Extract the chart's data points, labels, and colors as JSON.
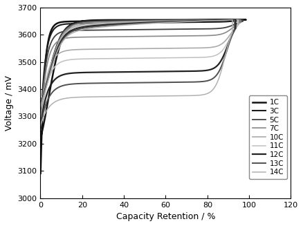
{
  "title": "",
  "xlabel": "Capacity Retention / %",
  "ylabel": "Voltage / mV",
  "xlim": [
    0,
    120
  ],
  "ylim": [
    3000,
    3700
  ],
  "xticks": [
    0,
    20,
    40,
    60,
    80,
    100,
    120
  ],
  "yticks": [
    3000,
    3100,
    3200,
    3300,
    3400,
    3500,
    3600,
    3700
  ],
  "curve_params": [
    {
      "label": "1C",
      "color": "#111111",
      "lw": 1.8,
      "v_init": 3075,
      "v_plat_c": 3648,
      "v_plat_d": 3648,
      "end_cap": 98.5,
      "rise_rate": 55
    },
    {
      "label": "3C",
      "color": "#1a1a1a",
      "lw": 1.5,
      "v_init": 3248,
      "v_plat_c": 3640,
      "v_plat_d": 3635,
      "end_cap": 97.5,
      "rise_rate": 45
    },
    {
      "label": "5C",
      "color": "#404040",
      "lw": 1.3,
      "v_init": 3255,
      "v_plat_c": 3615,
      "v_plat_d": 3605,
      "end_cap": 97,
      "rise_rate": 40
    },
    {
      "label": "7C",
      "color": "#888888",
      "lw": 1.2,
      "v_init": 3258,
      "v_plat_c": 3590,
      "v_plat_d": 3575,
      "end_cap": 96,
      "rise_rate": 36
    },
    {
      "label": "10C",
      "color": "#aaaaaa",
      "lw": 1.2,
      "v_init": 3260,
      "v_plat_c": 3545,
      "v_plat_d": 3528,
      "end_cap": 95,
      "rise_rate": 32
    },
    {
      "label": "11C",
      "color": "#c0c0c0",
      "lw": 1.1,
      "v_init": 3262,
      "v_plat_c": 3510,
      "v_plat_d": 3490,
      "end_cap": 94.5,
      "rise_rate": 30
    },
    {
      "label": "12C",
      "color": "#222222",
      "lw": 1.6,
      "v_init": 3263,
      "v_plat_c": 3460,
      "v_plat_d": 3440,
      "end_cap": 93.5,
      "rise_rate": 28
    },
    {
      "label": "13C",
      "color": "#505050",
      "lw": 1.4,
      "v_init": 3264,
      "v_plat_c": 3420,
      "v_plat_d": 3400,
      "end_cap": 93,
      "rise_rate": 26
    },
    {
      "label": "14C",
      "color": "#b0b0b0",
      "lw": 1.1,
      "v_init": 3265,
      "v_plat_c": 3370,
      "v_plat_d": 3350,
      "end_cap": 92,
      "rise_rate": 24
    }
  ],
  "background_color": "#ffffff",
  "legend_fontsize": 7.5,
  "axis_fontsize": 9,
  "tick_fontsize": 8
}
